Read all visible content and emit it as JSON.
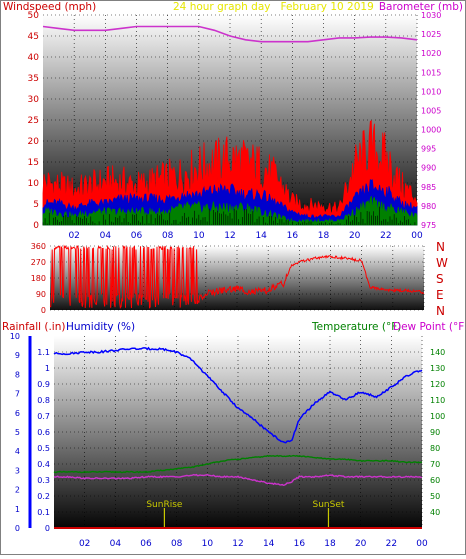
{
  "colors": {
    "wind": "#ff0000",
    "gust_band": "#ff0000",
    "avg_wind": "#0000cc",
    "low_wind": "#008000",
    "barometer": "#cc33cc",
    "direction": "#ff0000",
    "humidity": "#0000ff",
    "temperature": "#008000",
    "dew_point": "#cc33cc",
    "rainfall": "#cc0000",
    "sun_marker": "#c8c800",
    "label_red": "#cc0000",
    "label_blue": "#0000cc",
    "label_green": "#008000",
    "label_magenta": "#cc00cc",
    "title_yellow": "#e6e600"
  },
  "chart_data": [
    {
      "type": "line",
      "title": "24 hour graph day   February 10 2019",
      "left_axis_label": "Windspeed (mph)",
      "right_axis_label": "Barometer (mb)",
      "x_tick_labels": [
        "02",
        "04",
        "06",
        "08",
        "10",
        "12",
        "14",
        "16",
        "18",
        "20",
        "22",
        "00"
      ],
      "y_left_ticks": [
        0,
        5,
        10,
        15,
        20,
        25,
        30,
        35,
        40,
        45,
        50
      ],
      "y_left_range": [
        0,
        50
      ],
      "y_right_ticks": [
        975,
        980,
        985,
        990,
        995,
        1000,
        1005,
        1010,
        1015,
        1020,
        1025,
        1030
      ],
      "y_right_range": [
        975,
        1030
      ],
      "grid": true,
      "series": [
        {
          "key": "wind_gust",
          "x": [
            0,
            1,
            2,
            3,
            4,
            5,
            6,
            7,
            8,
            9,
            10,
            11,
            12,
            13,
            14,
            15,
            16,
            17,
            18,
            19,
            20,
            21,
            22,
            23,
            24
          ],
          "values": [
            11,
            10,
            9,
            10,
            11,
            11,
            10,
            11,
            12,
            13,
            15,
            16,
            17,
            16,
            15,
            12,
            6,
            5,
            5,
            4,
            15,
            20,
            17,
            10,
            7
          ]
        },
        {
          "key": "wind_avg",
          "x": [
            0,
            1,
            2,
            3,
            4,
            5,
            6,
            7,
            8,
            9,
            10,
            11,
            12,
            13,
            14,
            15,
            16,
            17,
            18,
            19,
            20,
            21,
            22,
            23,
            24
          ],
          "values": [
            5,
            5,
            4,
            5,
            5,
            6,
            6,
            6,
            6,
            7,
            7,
            8,
            8,
            7,
            7,
            5,
            3,
            2,
            2,
            2,
            6,
            9,
            8,
            5,
            4
          ]
        },
        {
          "key": "wind_low",
          "x": [
            0,
            1,
            2,
            3,
            4,
            5,
            6,
            7,
            8,
            9,
            10,
            11,
            12,
            13,
            14,
            15,
            16,
            17,
            18,
            19,
            20,
            21,
            22,
            23,
            24
          ],
          "values": [
            3,
            3,
            2,
            3,
            3,
            3,
            3,
            3,
            3,
            4,
            4,
            4,
            4,
            4,
            3,
            2,
            1,
            1,
            1,
            1,
            3,
            5,
            4,
            3,
            2
          ]
        },
        {
          "key": "barometer",
          "axis": "right",
          "x": [
            0,
            1,
            2,
            3,
            4,
            5,
            6,
            7,
            8,
            9,
            10,
            11,
            12,
            13,
            14,
            15,
            16,
            17,
            18,
            19,
            20,
            21,
            22,
            23,
            24
          ],
          "values": [
            1027,
            1026.5,
            1026,
            1026,
            1026,
            1026.5,
            1027,
            1027,
            1027,
            1027,
            1027,
            1026,
            1024.5,
            1023.5,
            1023,
            1023,
            1023,
            1023,
            1023.5,
            1024,
            1024,
            1024.2,
            1024.2,
            1024,
            1023.5
          ]
        }
      ]
    },
    {
      "type": "line",
      "title": "",
      "right_axis_labels": [
        "N",
        "W",
        "S",
        "E",
        "N"
      ],
      "x_tick_labels": [],
      "y_left_ticks": [
        0,
        90,
        180,
        270,
        360
      ],
      "y_left_range": [
        0,
        360
      ],
      "grid": true,
      "series": [
        {
          "key": "wind_direction",
          "x": [
            0,
            0.5,
            1,
            1.5,
            2,
            2.5,
            3,
            3.5,
            4,
            4.5,
            5,
            5.5,
            6,
            6.5,
            7,
            7.5,
            8,
            8.5,
            9,
            9.5,
            10,
            11,
            12,
            13,
            14,
            15,
            15.5,
            16,
            17,
            18,
            19,
            20,
            20.5,
            21,
            22,
            23,
            24
          ],
          "values": [
            320,
            40,
            350,
            20,
            330,
            60,
            340,
            30,
            300,
            60,
            350,
            20,
            310,
            90,
            340,
            100,
            300,
            50,
            130,
            60,
            90,
            110,
            120,
            100,
            110,
            150,
            250,
            270,
            290,
            300,
            290,
            280,
            130,
            120,
            110,
            110,
            100
          ]
        }
      ]
    },
    {
      "type": "line",
      "title": "",
      "left_axis_label_1": "Rainfall (.in)",
      "left_axis_label_2": "Humidity (%)",
      "right_axis_label_1": "Temperature (°F)",
      "right_axis_label_2": "Dew Point (°F)",
      "x_tick_labels": [
        "02",
        "04",
        "06",
        "08",
        "10",
        "12",
        "14",
        "16",
        "18",
        "20",
        "22",
        "00"
      ],
      "y_rain_ticks": [
        0,
        1,
        2,
        3,
        4,
        5,
        6,
        7,
        8,
        9,
        10
      ],
      "y_rain_range": [
        0,
        10
      ],
      "y_hum_ticks": [
        0,
        0.1,
        0.2,
        0.3,
        0.4,
        0.5,
        0.6,
        0.7,
        0.8,
        0.9,
        1,
        1.1
      ],
      "y_hum_range": [
        0,
        1.2
      ],
      "y_temp_ticks": [
        40,
        50,
        60,
        70,
        80,
        90,
        100,
        110,
        120,
        130,
        140
      ],
      "y_temp_range": [
        30,
        150
      ],
      "grid": true,
      "annotations": [
        {
          "label": "SunRise",
          "x": 7.2
        },
        {
          "label": "SunSet",
          "x": 17.9
        }
      ],
      "series": [
        {
          "key": "humidity",
          "x": [
            0,
            1,
            2,
            3,
            4,
            5,
            6,
            7,
            8,
            9,
            10,
            11,
            12,
            13,
            14,
            15,
            15.5,
            16,
            17,
            18,
            19,
            20,
            21,
            22,
            23,
            24
          ],
          "values": [
            1.09,
            1.09,
            1.1,
            1.1,
            1.11,
            1.12,
            1.12,
            1.12,
            1.1,
            1.05,
            0.95,
            0.85,
            0.75,
            0.68,
            0.6,
            0.53,
            0.55,
            0.68,
            0.78,
            0.85,
            0.8,
            0.85,
            0.82,
            0.88,
            0.95,
            0.99
          ]
        },
        {
          "key": "temperature",
          "axis": "temp",
          "x": [
            0,
            1,
            2,
            3,
            4,
            5,
            6,
            7,
            8,
            9,
            10,
            11,
            12,
            13,
            14,
            15,
            16,
            17,
            18,
            19,
            20,
            21,
            22,
            23,
            24
          ],
          "values": [
            65,
            65,
            65,
            65,
            65,
            65,
            65,
            66,
            67,
            68,
            70,
            72,
            73,
            74,
            75,
            75,
            75,
            74,
            73,
            73,
            72,
            72,
            72,
            71,
            71
          ]
        },
        {
          "key": "dew_point",
          "axis": "temp",
          "x": [
            0,
            1,
            2,
            3,
            4,
            5,
            6,
            7,
            8,
            9,
            10,
            11,
            12,
            13,
            14,
            15,
            15.5,
            16,
            17,
            18,
            19,
            20,
            21,
            22,
            23,
            24
          ],
          "values": [
            62,
            62,
            61,
            61,
            61,
            61,
            62,
            62,
            62,
            63,
            63,
            62,
            62,
            60,
            58,
            57,
            59,
            62,
            62,
            63,
            62,
            62,
            62,
            62,
            62,
            62
          ]
        },
        {
          "key": "rainfall",
          "axis": "rain",
          "x": [
            0,
            24
          ],
          "values": [
            0,
            0
          ]
        }
      ]
    }
  ]
}
